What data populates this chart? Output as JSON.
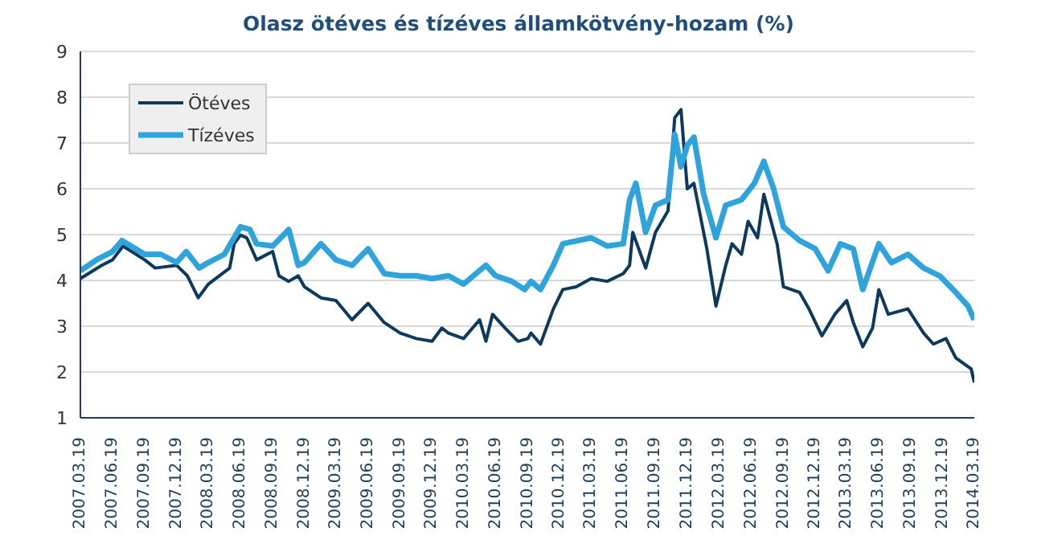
{
  "chart_data": {
    "type": "line",
    "title": "Olasz ötéves és tízéves államkötvény-hozam (%)",
    "xlim": [
      "2007-03-19",
      "2014-03-19"
    ],
    "xticks": [
      {
        "value": "2007-03-19",
        "label": "2007.03.19"
      },
      {
        "value": "2007-06-19",
        "label": "2007.06.19"
      },
      {
        "value": "2007-09-19",
        "label": "2007.09.19"
      },
      {
        "value": "2007-12-19",
        "label": "2007.12.19"
      },
      {
        "value": "2008-03-19",
        "label": "2008.03.19"
      },
      {
        "value": "2008-06-19",
        "label": "2008.06.19"
      },
      {
        "value": "2008-09-19",
        "label": "2008.09.19"
      },
      {
        "value": "2008-12-19",
        "label": "2008.12.19"
      },
      {
        "value": "2009-03-19",
        "label": "2009.03.19"
      },
      {
        "value": "2009-06-19",
        "label": "2009.06.19"
      },
      {
        "value": "2009-09-19",
        "label": "2009.09.19"
      },
      {
        "value": "2009-12-19",
        "label": "2009.12.19"
      },
      {
        "value": "2010-03-19",
        "label": "2010.03.19"
      },
      {
        "value": "2010-06-19",
        "label": "2010.06.19"
      },
      {
        "value": "2010-09-19",
        "label": "2010.09.19"
      },
      {
        "value": "2010-12-19",
        "label": "2010.12.19"
      },
      {
        "value": "2011-03-19",
        "label": "2011.03.19"
      },
      {
        "value": "2011-06-19",
        "label": "2011.06.19"
      },
      {
        "value": "2011-09-19",
        "label": "2011.09.19"
      },
      {
        "value": "2011-12-19",
        "label": "2011.12.19"
      },
      {
        "value": "2012-03-19",
        "label": "2012.03.19"
      },
      {
        "value": "2012-06-19",
        "label": "2012.06.19"
      },
      {
        "value": "2012-09-19",
        "label": "2012.09.19"
      },
      {
        "value": "2012-12-19",
        "label": "2012.12.19"
      },
      {
        "value": "2013-03-19",
        "label": "2013.03.19"
      },
      {
        "value": "2013-06-19",
        "label": "2013.06.19"
      },
      {
        "value": "2013-09-19",
        "label": "2013.09.19"
      },
      {
        "value": "2013-12-19",
        "label": "2013.12.19"
      },
      {
        "value": "2014-03-19",
        "label": "2014.03.19"
      }
    ],
    "ylim": [
      1,
      9
    ],
    "yticks": [
      1,
      2,
      3,
      4,
      5,
      6,
      7,
      8,
      9
    ],
    "grid": "y",
    "legend": "top left",
    "marker": "none",
    "line_style": "solid",
    "series": [
      {
        "name": "Ötéves",
        "color": "#0d3a5c",
        "x": [
          "2007-03-19",
          "2007-05-19",
          "2007-06-19",
          "2007-07-19",
          "2007-08-19",
          "2007-09-19",
          "2007-10-19",
          "2007-12-19",
          "2008-01-19",
          "2008-02-19",
          "2008-03-19",
          "2008-05-19",
          "2008-06-01",
          "2008-06-19",
          "2008-07-07",
          "2008-08-04",
          "2008-09-19",
          "2008-10-07",
          "2008-11-04",
          "2008-12-01",
          "2008-12-19",
          "2009-02-04",
          "2009-03-19",
          "2009-05-04",
          "2009-06-19",
          "2009-08-04",
          "2009-09-19",
          "2009-11-04",
          "2009-12-19",
          "2010-01-16",
          "2010-02-04",
          "2010-03-19",
          "2010-05-04",
          "2010-05-22",
          "2010-06-10",
          "2010-07-16",
          "2010-08-22",
          "2010-09-19",
          "2010-09-28",
          "2010-10-25",
          "2010-12-01",
          "2010-12-28",
          "2011-02-04",
          "2011-03-19",
          "2011-05-04",
          "2011-06-19",
          "2011-07-07",
          "2011-07-16",
          "2011-08-22",
          "2011-09-19",
          "2011-10-25",
          "2011-11-13",
          "2011-12-01",
          "2011-12-19",
          "2012-01-07",
          "2012-02-13",
          "2012-03-10",
          "2012-04-07",
          "2012-04-25",
          "2012-05-22",
          "2012-06-10",
          "2012-07-07",
          "2012-07-25",
          "2012-09-01",
          "2012-09-19",
          "2012-11-04",
          "2012-12-01",
          "2013-01-07",
          "2013-02-13",
          "2013-03-19",
          "2013-04-07",
          "2013-05-04",
          "2013-06-01",
          "2013-06-19",
          "2013-07-16",
          "2013-09-10",
          "2013-10-25",
          "2013-11-22",
          "2013-12-28",
          "2014-01-25",
          "2014-03-10",
          "2014-03-19"
        ],
        "values": [
          4.04,
          4.33,
          4.45,
          4.75,
          4.6,
          4.45,
          4.27,
          4.33,
          4.1,
          3.62,
          3.92,
          4.27,
          4.8,
          4.99,
          4.93,
          4.45,
          4.63,
          4.1,
          3.98,
          4.1,
          3.86,
          3.62,
          3.56,
          3.14,
          3.5,
          3.08,
          2.85,
          2.73,
          2.67,
          2.96,
          2.85,
          2.73,
          3.14,
          2.67,
          3.26,
          2.96,
          2.67,
          2.73,
          2.85,
          2.61,
          3.38,
          3.8,
          3.86,
          4.04,
          3.98,
          4.15,
          4.33,
          5.05,
          4.27,
          5.05,
          5.52,
          7.55,
          7.73,
          6.0,
          6.12,
          4.69,
          3.44,
          4.33,
          4.8,
          4.57,
          5.29,
          4.93,
          5.88,
          4.8,
          3.86,
          3.74,
          3.38,
          2.79,
          3.26,
          3.56,
          3.08,
          2.55,
          2.96,
          3.8,
          3.26,
          3.38,
          2.85,
          2.61,
          2.73,
          2.31,
          2.07,
          1.77
        ]
      },
      {
        "name": "Tízéves",
        "color": "#2ea3dc",
        "x": [
          "2007-03-19",
          "2007-05-04",
          "2007-06-19",
          "2007-07-16",
          "2007-09-19",
          "2007-11-04",
          "2007-12-19",
          "2008-01-16",
          "2008-02-22",
          "2008-03-19",
          "2008-05-04",
          "2008-06-19",
          "2008-07-16",
          "2008-08-04",
          "2008-09-19",
          "2008-11-04",
          "2008-12-01",
          "2008-12-19",
          "2009-02-04",
          "2009-03-19",
          "2009-05-04",
          "2009-06-19",
          "2009-08-04",
          "2009-09-19",
          "2009-11-04",
          "2009-12-19",
          "2010-02-04",
          "2010-03-19",
          "2010-05-22",
          "2010-06-19",
          "2010-08-04",
          "2010-09-10",
          "2010-09-28",
          "2010-10-25",
          "2010-12-01",
          "2010-12-28",
          "2011-03-19",
          "2011-05-04",
          "2011-06-19",
          "2011-07-07",
          "2011-07-25",
          "2011-08-22",
          "2011-09-19",
          "2011-10-25",
          "2011-11-13",
          "2011-12-01",
          "2011-12-19",
          "2012-01-07",
          "2012-02-04",
          "2012-03-10",
          "2012-04-07",
          "2012-05-22",
          "2012-06-28",
          "2012-07-25",
          "2012-08-22",
          "2012-09-19",
          "2012-11-04",
          "2012-12-19",
          "2013-01-25",
          "2013-03-01",
          "2013-04-07",
          "2013-05-04",
          "2013-06-19",
          "2013-07-25",
          "2013-09-10",
          "2013-10-25",
          "2013-12-10",
          "2014-01-25",
          "2014-03-01",
          "2014-03-19"
        ],
        "values": [
          4.21,
          4.45,
          4.63,
          4.87,
          4.57,
          4.57,
          4.39,
          4.63,
          4.27,
          4.39,
          4.57,
          5.17,
          5.11,
          4.8,
          4.75,
          5.11,
          4.33,
          4.39,
          4.8,
          4.45,
          4.33,
          4.69,
          4.15,
          4.1,
          4.1,
          4.04,
          4.1,
          3.92,
          4.33,
          4.1,
          3.98,
          3.8,
          3.98,
          3.8,
          4.33,
          4.8,
          4.93,
          4.75,
          4.8,
          5.76,
          6.12,
          5.05,
          5.64,
          5.76,
          7.19,
          6.48,
          6.95,
          7.13,
          5.88,
          4.93,
          5.64,
          5.76,
          6.12,
          6.6,
          6.0,
          5.17,
          4.87,
          4.69,
          4.21,
          4.8,
          4.69,
          3.8,
          4.8,
          4.39,
          4.57,
          4.27,
          4.1,
          3.74,
          3.44,
          3.14
        ]
      }
    ]
  }
}
